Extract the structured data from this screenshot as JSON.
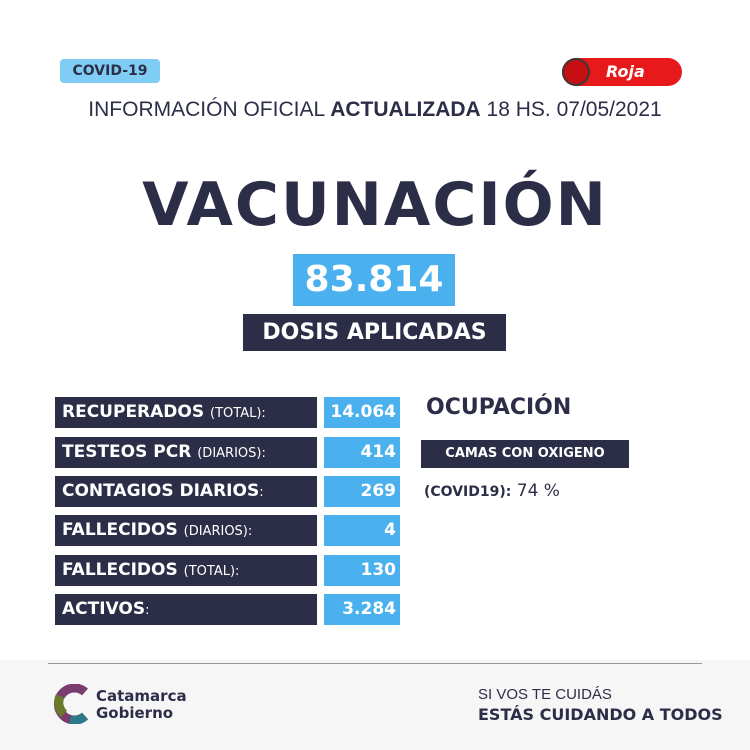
{
  "header": {
    "badge": "COVID-19",
    "alert_level": "Roja",
    "alert_color": "#e8191a",
    "info_prefix": "INFORMACIÓN OFICIAL",
    "info_bold": "ACTUALIZADA",
    "info_suffix": "18 HS. 07/05/2021"
  },
  "main": {
    "title": "VACUNACIÓN",
    "doses": "83.814",
    "doses_label": "DOSIS APLICADAS"
  },
  "stats": [
    {
      "label": "RECUPERADOS",
      "sub": "(TOTAL):",
      "value": "14.064"
    },
    {
      "label": "TESTEOS PCR",
      "sub": "(DIARIOS):",
      "value": "414"
    },
    {
      "label": "CONTAGIOS DIARIOS",
      "sub": ":",
      "value": "269"
    },
    {
      "label": "FALLECIDOS",
      "sub": "(DIARIOS):",
      "value": "4"
    },
    {
      "label": "FALLECIDOS",
      "sub": "(TOTAL):",
      "value": "130"
    },
    {
      "label": "ACTIVOS",
      "sub": ":",
      "value": "3.284"
    }
  ],
  "occupancy": {
    "title": "OCUPACIÓN",
    "box": "CAMAS CON OXIGENO",
    "label": "(COVID19):",
    "value": "74 %"
  },
  "footer": {
    "brand_line1": "Catamarca",
    "brand_line2": "Gobierno",
    "slogan_line1": "SI VOS TE CUIDÁS",
    "slogan_line2": "ESTÁS CUIDANDO A TODOS"
  },
  "colors": {
    "navy": "#2c2e48",
    "blue": "#4ab0ee",
    "badge": "#7fcdf5"
  }
}
